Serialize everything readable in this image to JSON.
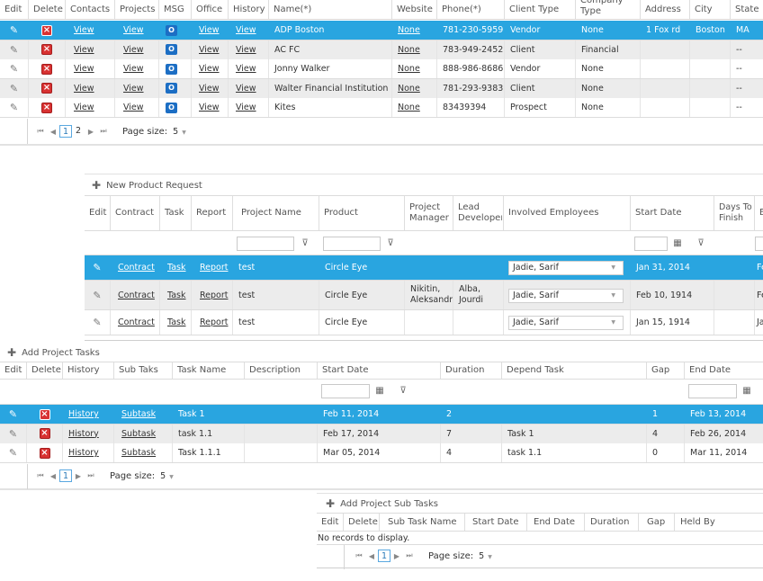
{
  "grid1": {
    "headers": [
      "Edit",
      "Delete",
      "Contacts",
      "Projects",
      "MSG",
      "Office",
      "History",
      "Name(*)",
      "Website",
      "Phone(*)",
      "Client Type",
      "Company Type",
      "Address",
      "City",
      "State"
    ],
    "rows": [
      {
        "contacts": "View",
        "projects": "View",
        "office": "View",
        "history": "View",
        "name": "ADP Boston",
        "website": "None",
        "phone": "781-230-5959",
        "client_type": "Vendor",
        "company_type": "None",
        "address": "1 Fox rd",
        "city": "Boston",
        "state": "MA"
      },
      {
        "contacts": "View",
        "projects": "View",
        "office": "View",
        "history": "View",
        "name": "AC FC",
        "website": "None",
        "phone": "783-949-2452",
        "client_type": "Client",
        "company_type": "Financial",
        "address": "",
        "city": "",
        "state": "--"
      },
      {
        "contacts": "View",
        "projects": "View",
        "office": "View",
        "history": "View",
        "name": "Jonny Walker",
        "website": "None",
        "phone": "888-986-8686",
        "client_type": "Vendor",
        "company_type": "None",
        "address": "",
        "city": "",
        "state": "--"
      },
      {
        "contacts": "View",
        "projects": "View",
        "office": "View",
        "history": "View",
        "name": "Walter Financial Institution",
        "website": "None",
        "phone": "781-293-9383",
        "client_type": "Client",
        "company_type": "None",
        "address": "",
        "city": "",
        "state": "--"
      },
      {
        "contacts": "View",
        "projects": "View",
        "office": "View",
        "history": "View",
        "name": "Kites",
        "website": "None",
        "phone": "83439394",
        "client_type": "Prospect",
        "company_type": "None",
        "address": "",
        "city": "",
        "state": "--"
      }
    ],
    "pager": {
      "pages": [
        "1",
        "2"
      ],
      "current": "1",
      "size_label": "Page size:",
      "size": "5"
    }
  },
  "grid2": {
    "toolbar": "New Product Request",
    "headers": [
      "Edit",
      "Contract",
      "Task",
      "Report",
      "Project Name",
      "Product",
      "Project Manager",
      "Lead Developer",
      "Involved Employees",
      "Start Date",
      "Days To Finish",
      "E"
    ],
    "rows": [
      {
        "contract": "Contract",
        "task": "Task",
        "report": "Report",
        "project_name": "test",
        "product": "Circle Eye",
        "manager": "",
        "developer": "",
        "employees": "Jadie, Sarif",
        "start": "Jan 31, 2014",
        "end": "Fe"
      },
      {
        "contract": "Contract",
        "task": "Task",
        "report": "Report",
        "project_name": "test",
        "product": "Circle Eye",
        "manager": "Nikitin, Aleksandr",
        "developer": "Alba, Jourdi",
        "employees": "Jadie, Sarif",
        "start": "Feb 10, 1914",
        "end": "Fe"
      },
      {
        "contract": "Contract",
        "task": "Task",
        "report": "Report",
        "project_name": "test",
        "product": "Circle Eye",
        "manager": "",
        "developer": "",
        "employees": "Jadie, Sarif",
        "start": "Jan 15, 1914",
        "end": "Ja"
      }
    ]
  },
  "grid3": {
    "toolbar": "Add Project Tasks",
    "headers": [
      "Edit",
      "Delete",
      "History",
      "Sub Taks",
      "Task Name",
      "Description",
      "Start Date",
      "Duration",
      "Depend Task",
      "Gap",
      "End Date"
    ],
    "rows": [
      {
        "history": "History",
        "subtask": "Subtask",
        "task_name": "Task 1",
        "description": "",
        "start": "Feb 11, 2014",
        "duration": "2",
        "depend": "",
        "gap": "1",
        "end": "Feb 13, 2014"
      },
      {
        "history": "History",
        "subtask": "Subtask",
        "task_name": "task 1.1",
        "description": "",
        "start": "Feb 17, 2014",
        "duration": "7",
        "depend": "Task 1",
        "gap": "4",
        "end": "Feb 26, 2014"
      },
      {
        "history": "History",
        "subtask": "Subtask",
        "task_name": "Task 1.1.1",
        "description": "",
        "start": "Mar 05, 2014",
        "duration": "4",
        "depend": "task 1.1",
        "gap": "0",
        "end": "Mar 11, 2014"
      }
    ],
    "pager": {
      "pages": [
        "1"
      ],
      "current": "1",
      "size_label": "Page size:",
      "size": "5"
    }
  },
  "grid4": {
    "toolbar": "Add Project Sub Tasks",
    "headers": [
      "Edit",
      "Delete",
      "Sub Task Name",
      "Start Date",
      "End Date",
      "Duration",
      "Gap",
      "Held By"
    ],
    "empty": "No records to display.",
    "pager": {
      "pages": [
        "1"
      ],
      "current": "1",
      "size_label": "Page size:",
      "size": "5"
    }
  },
  "colors": {
    "selected": "#29a5e0",
    "alt": "#ececec",
    "delete": "#d83232",
    "outlook": "#1c6ec4"
  }
}
